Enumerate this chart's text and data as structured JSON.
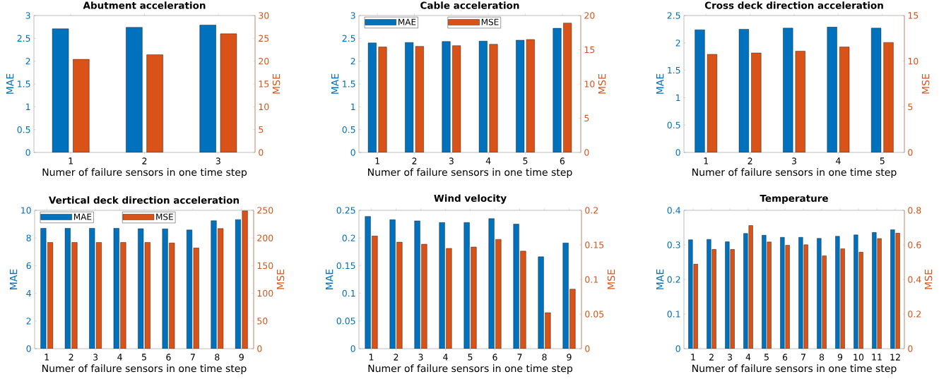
{
  "chart_data": [
    {
      "type": "bar",
      "title": "Abutment acceleration",
      "xlabel": "Numer of failure sensors in one time step",
      "ylabel": "MAE",
      "y2label": "MSE",
      "categories": [
        "1",
        "2",
        "3"
      ],
      "series": [
        {
          "color": "#0072bd",
          "values": [
            2.71,
            2.74,
            2.79
          ]
        },
        {
          "color": "#d95319",
          "axis": "y2",
          "values": [
            20.4,
            21.4,
            26.0
          ]
        }
      ],
      "ylim": [
        0,
        3
      ],
      "yticks": [
        0,
        0.5,
        1,
        1.5,
        2,
        2.5,
        3
      ],
      "y2lim": [
        0,
        30
      ],
      "y2ticks": [
        0,
        5,
        10,
        15,
        20,
        25,
        30
      ],
      "grid": false,
      "legend": false
    },
    {
      "type": "bar",
      "title": "Cable acceleration",
      "xlabel": "Numer of failure sensors in one time step",
      "ylabel": "MAE",
      "y2label": "MSE",
      "categories": [
        "1",
        "2",
        "3",
        "4",
        "5",
        "6"
      ],
      "series": [
        {
          "name": "MAE",
          "color": "#0072bd",
          "values": [
            2.4,
            2.41,
            2.43,
            2.44,
            2.46,
            2.72
          ]
        },
        {
          "name": "MSE",
          "color": "#d95319",
          "axis": "y2",
          "values": [
            15.4,
            15.5,
            15.6,
            15.8,
            16.5,
            18.9
          ]
        }
      ],
      "ylim": [
        0,
        3
      ],
      "yticks": [
        0,
        0.5,
        1,
        1.5,
        2,
        2.5,
        3
      ],
      "y2lim": [
        0,
        20
      ],
      "y2ticks": [
        0,
        5,
        10,
        15,
        20
      ],
      "grid": false,
      "legend": "top left"
    },
    {
      "type": "bar",
      "title": "Cross deck direction acceleration",
      "xlabel": "Numer of failure sensors in one time step",
      "ylabel": "MAE",
      "y2label": "MSE",
      "categories": [
        "1",
        "2",
        "3",
        "4",
        "5"
      ],
      "series": [
        {
          "color": "#0072bd",
          "values": [
            2.24,
            2.25,
            2.27,
            2.29,
            2.27
          ]
        },
        {
          "color": "#d95319",
          "axis": "y2",
          "values": [
            10.75,
            10.9,
            11.1,
            11.55,
            12.05
          ]
        }
      ],
      "ylim": [
        0,
        2.5
      ],
      "yticks": [
        0,
        0.5,
        1,
        1.5,
        2,
        2.5
      ],
      "y2lim": [
        0,
        15
      ],
      "y2ticks": [
        0,
        5,
        10,
        15
      ],
      "grid": false,
      "legend": false
    },
    {
      "type": "bar",
      "title": "Vertical deck direction acceleration",
      "xlabel": "Numer of failure sensors in one time step",
      "ylabel": "MAE",
      "y2label": "MSE",
      "categories": [
        "1",
        "2",
        "3",
        "4",
        "5",
        "6",
        "7",
        "8",
        "9"
      ],
      "series": [
        {
          "name": "MAE",
          "color": "#0072bd",
          "values": [
            8.7,
            8.7,
            8.7,
            8.7,
            8.67,
            8.66,
            8.58,
            9.25,
            9.33
          ]
        },
        {
          "name": "MSE",
          "color": "#d95319",
          "axis": "y2",
          "values": [
            192,
            192,
            192,
            192,
            192,
            191,
            182,
            217,
            249
          ]
        }
      ],
      "ylim": [
        0,
        10
      ],
      "yticks": [
        0,
        2,
        4,
        6,
        8,
        10
      ],
      "y2lim": [
        0,
        250
      ],
      "y2ticks": [
        0,
        50,
        100,
        150,
        200,
        250
      ],
      "grid": false,
      "legend": "top left"
    },
    {
      "type": "bar",
      "title": "Wind velocity",
      "xlabel": "Numer of failure sensors in one time step",
      "ylabel": "MAE",
      "y2label": "MSE",
      "categories": [
        "1",
        "2",
        "3",
        "4",
        "5",
        "6",
        "7",
        "8",
        "9"
      ],
      "series": [
        {
          "color": "#0072bd",
          "values": [
            0.239,
            0.233,
            0.231,
            0.228,
            0.228,
            0.235,
            0.225,
            0.166,
            0.191
          ]
        },
        {
          "color": "#d95319",
          "axis": "y2",
          "values": [
            0.163,
            0.154,
            0.151,
            0.145,
            0.147,
            0.158,
            0.141,
            0.052,
            0.086
          ]
        }
      ],
      "ylim": [
        0,
        0.25
      ],
      "yticks": [
        0,
        0.05,
        0.1,
        0.15,
        0.2,
        0.25
      ],
      "y2lim": [
        0,
        0.2
      ],
      "y2ticks": [
        0,
        0.05,
        0.1,
        0.15,
        0.2
      ],
      "grid": false,
      "legend": false
    },
    {
      "type": "bar",
      "title": "Temperature",
      "xlabel": "Numer of failure sensors in one time step",
      "ylabel": "MAE",
      "y2label": "MSE",
      "categories": [
        "1",
        "2",
        "3",
        "4",
        "5",
        "6",
        "7",
        "8",
        "9",
        "10",
        "11",
        "12"
      ],
      "series": [
        {
          "color": "#0072bd",
          "values": [
            0.315,
            0.316,
            0.309,
            0.333,
            0.328,
            0.322,
            0.322,
            0.319,
            0.325,
            0.329,
            0.336,
            0.344
          ]
        },
        {
          "color": "#d95319",
          "axis": "y2",
          "values": [
            0.489,
            0.574,
            0.574,
            0.712,
            0.617,
            0.598,
            0.601,
            0.537,
            0.578,
            0.558,
            0.637,
            0.668
          ]
        }
      ],
      "ylim": [
        0,
        0.4
      ],
      "yticks": [
        0,
        0.1,
        0.2,
        0.3,
        0.4
      ],
      "y2lim": [
        0,
        0.8
      ],
      "y2ticks": [
        0,
        0.2,
        0.4,
        0.6,
        0.8
      ],
      "grid": false,
      "legend": false
    }
  ]
}
